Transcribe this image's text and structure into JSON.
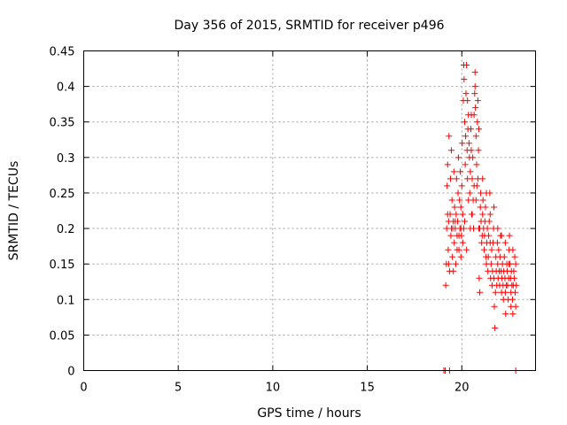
{
  "chart_data": {
    "type": "scatter",
    "title": "Day 356 of 2015, SRMTID for receiver p496",
    "xlabel": "GPS time / hours",
    "ylabel": "SRMTID / TECUs",
    "xlim": [
      0,
      23.9
    ],
    "ylim": [
      0,
      0.45
    ],
    "xticks": [
      0,
      5,
      10,
      15,
      20
    ],
    "yticks": [
      0,
      0.05,
      0.1,
      0.15,
      0.2,
      0.25,
      0.3,
      0.35,
      0.4,
      0.45
    ],
    "grid": true,
    "marker": "+",
    "color": "#ff0000",
    "series": [
      {
        "points": [
          [
            19.05,
            0.0
          ],
          [
            19.12,
            0.0
          ],
          [
            19.35,
            0.0
          ],
          [
            22.85,
            0.0
          ],
          [
            19.15,
            0.12
          ],
          [
            19.18,
            0.15
          ],
          [
            19.2,
            0.2
          ],
          [
            19.22,
            0.26
          ],
          [
            19.25,
            0.29
          ],
          [
            19.28,
            0.17
          ],
          [
            19.3,
            0.21
          ],
          [
            19.32,
            0.33
          ],
          [
            19.35,
            0.14
          ],
          [
            19.38,
            0.22
          ],
          [
            19.4,
            0.27
          ],
          [
            19.42,
            0.19
          ],
          [
            19.45,
            0.31
          ],
          [
            19.48,
            0.24
          ],
          [
            19.5,
            0.16
          ],
          [
            19.52,
            0.2
          ],
          [
            19.55,
            0.21
          ],
          [
            19.58,
            0.28
          ],
          [
            19.6,
            0.18
          ],
          [
            19.62,
            0.23
          ],
          [
            19.65,
            0.2
          ],
          [
            19.68,
            0.15
          ],
          [
            19.7,
            0.22
          ],
          [
            19.72,
            0.27
          ],
          [
            19.75,
            0.19
          ],
          [
            19.78,
            0.21
          ],
          [
            19.8,
            0.25
          ],
          [
            19.82,
            0.3
          ],
          [
            19.85,
            0.17
          ],
          [
            19.88,
            0.24
          ],
          [
            19.9,
            0.2
          ],
          [
            19.92,
            0.28
          ],
          [
            19.95,
            0.23
          ],
          [
            19.98,
            0.19
          ],
          [
            20.0,
            0.26
          ],
          [
            20.02,
            0.32
          ],
          [
            20.05,
            0.22
          ],
          [
            20.08,
            0.38
          ],
          [
            20.1,
            0.43
          ],
          [
            20.12,
            0.41
          ],
          [
            20.15,
            0.35
          ],
          [
            20.18,
            0.29
          ],
          [
            20.2,
            0.33
          ],
          [
            20.22,
            0.39
          ],
          [
            20.25,
            0.43
          ],
          [
            20.28,
            0.31
          ],
          [
            20.3,
            0.27
          ],
          [
            20.32,
            0.34
          ],
          [
            20.35,
            0.36
          ],
          [
            20.38,
            0.32
          ],
          [
            20.4,
            0.3
          ],
          [
            20.42,
            0.25
          ],
          [
            20.45,
            0.28
          ],
          [
            20.48,
            0.34
          ],
          [
            20.5,
            0.31
          ],
          [
            20.52,
            0.22
          ],
          [
            20.55,
            0.27
          ],
          [
            20.58,
            0.3
          ],
          [
            20.6,
            0.24
          ],
          [
            20.62,
            0.2
          ],
          [
            20.65,
            0.36
          ],
          [
            20.68,
            0.39
          ],
          [
            20.7,
            0.42
          ],
          [
            20.72,
            0.37
          ],
          [
            20.75,
            0.33
          ],
          [
            20.78,
            0.29
          ],
          [
            20.8,
            0.26
          ],
          [
            20.82,
            0.35
          ],
          [
            20.85,
            0.38
          ],
          [
            20.88,
            0.31
          ],
          [
            20.9,
            0.2
          ],
          [
            20.92,
            0.13
          ],
          [
            20.95,
            0.11
          ],
          [
            20.98,
            0.23
          ],
          [
            21.0,
            0.25
          ],
          [
            21.02,
            0.21
          ],
          [
            21.05,
            0.18
          ],
          [
            21.08,
            0.19
          ],
          [
            21.1,
            0.22
          ],
          [
            21.12,
            0.24
          ],
          [
            21.15,
            0.2
          ],
          [
            21.18,
            0.17
          ],
          [
            21.2,
            0.19
          ],
          [
            21.22,
            0.21
          ],
          [
            21.25,
            0.23
          ],
          [
            21.28,
            0.16
          ],
          [
            21.3,
            0.15
          ],
          [
            21.32,
            0.18
          ],
          [
            21.35,
            0.2
          ],
          [
            21.38,
            0.14
          ],
          [
            21.4,
            0.16
          ],
          [
            21.42,
            0.19
          ],
          [
            21.45,
            0.21
          ],
          [
            21.48,
            0.25
          ],
          [
            21.5,
            0.18
          ],
          [
            21.52,
            0.13
          ],
          [
            21.55,
            0.15
          ],
          [
            21.58,
            0.17
          ],
          [
            21.6,
            0.12
          ],
          [
            21.62,
            0.14
          ],
          [
            21.65,
            0.18
          ],
          [
            21.68,
            0.2
          ],
          [
            21.7,
            0.13
          ],
          [
            21.72,
            0.09
          ],
          [
            21.75,
            0.06
          ],
          [
            21.78,
            0.11
          ],
          [
            21.8,
            0.16
          ],
          [
            21.82,
            0.14
          ],
          [
            21.85,
            0.12
          ],
          [
            21.88,
            0.18
          ],
          [
            21.9,
            0.15
          ],
          [
            21.92,
            0.13
          ],
          [
            21.95,
            0.17
          ],
          [
            21.98,
            0.14
          ],
          [
            22.0,
            0.12
          ],
          [
            22.02,
            0.16
          ],
          [
            22.05,
            0.19
          ],
          [
            22.08,
            0.14
          ],
          [
            22.1,
            0.11
          ],
          [
            22.12,
            0.13
          ],
          [
            22.15,
            0.15
          ],
          [
            22.18,
            0.12
          ],
          [
            22.2,
            0.1
          ],
          [
            22.22,
            0.14
          ],
          [
            22.25,
            0.16
          ],
          [
            22.28,
            0.13
          ],
          [
            22.3,
            0.11
          ],
          [
            22.32,
            0.08
          ],
          [
            22.35,
            0.12
          ],
          [
            22.38,
            0.15
          ],
          [
            22.4,
            0.14
          ],
          [
            22.42,
            0.12
          ],
          [
            22.45,
            0.1
          ],
          [
            22.48,
            0.13
          ],
          [
            22.5,
            0.17
          ],
          [
            22.52,
            0.19
          ],
          [
            22.55,
            0.15
          ],
          [
            22.58,
            0.13
          ],
          [
            22.6,
            0.11
          ],
          [
            22.62,
            0.14
          ],
          [
            22.65,
            0.12
          ],
          [
            22.68,
            0.1
          ],
          [
            22.7,
            0.08
          ],
          [
            22.72,
            0.12
          ],
          [
            22.75,
            0.14
          ],
          [
            22.78,
            0.13
          ],
          [
            22.8,
            0.16
          ],
          [
            22.82,
            0.11
          ],
          [
            22.85,
            0.09
          ],
          [
            22.88,
            0.12
          ],
          [
            20.05,
            0.18
          ],
          [
            20.15,
            0.21
          ],
          [
            20.25,
            0.17
          ],
          [
            20.35,
            0.24
          ],
          [
            20.45,
            0.2
          ],
          [
            20.55,
            0.22
          ],
          [
            20.65,
            0.26
          ],
          [
            20.75,
            0.24
          ],
          [
            20.85,
            0.27
          ],
          [
            20.95,
            0.2
          ],
          [
            19.25,
            0.22
          ],
          [
            19.45,
            0.2
          ],
          [
            19.65,
            0.21
          ],
          [
            19.85,
            0.19
          ],
          [
            19.95,
            0.2
          ],
          [
            19.3,
            0.15
          ],
          [
            19.55,
            0.14
          ],
          [
            19.75,
            0.17
          ],
          [
            19.95,
            0.16
          ],
          [
            20.1,
            0.2
          ],
          [
            20.3,
            0.38
          ],
          [
            20.5,
            0.36
          ],
          [
            20.7,
            0.4
          ],
          [
            20.9,
            0.34
          ],
          [
            21.1,
            0.27
          ],
          [
            21.3,
            0.25
          ],
          [
            21.5,
            0.22
          ],
          [
            21.7,
            0.23
          ],
          [
            21.9,
            0.2
          ],
          [
            22.1,
            0.19
          ],
          [
            22.3,
            0.18
          ],
          [
            22.5,
            0.15
          ],
          [
            22.7,
            0.17
          ],
          [
            22.85,
            0.15
          ],
          [
            22.6,
            0.09
          ]
        ]
      }
    ]
  }
}
